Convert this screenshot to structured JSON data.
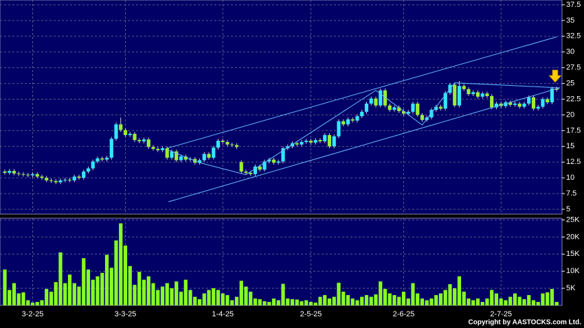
{
  "chart_data": {
    "type": "candlestick",
    "categories": [
      null,
      null,
      null,
      null,
      null,
      null,
      "3-2-25",
      null,
      null,
      null,
      null,
      null,
      null,
      null,
      null,
      null,
      null,
      null,
      null,
      null,
      null,
      null,
      null,
      null,
      null,
      null,
      "3-3-25",
      null,
      null,
      null,
      null,
      null,
      null,
      null,
      null,
      null,
      null,
      null,
      null,
      null,
      null,
      null,
      null,
      null,
      null,
      null,
      null,
      "1-4-25",
      null,
      null,
      null,
      null,
      null,
      null,
      null,
      null,
      null,
      null,
      null,
      null,
      null,
      null,
      null,
      null,
      null,
      null,
      "2-5-25",
      null,
      null,
      null,
      null,
      null,
      null,
      null,
      null,
      null,
      null,
      null,
      null,
      null,
      null,
      null,
      null,
      null,
      null,
      null,
      "2-6-25",
      null,
      null,
      null,
      null,
      null,
      null,
      null,
      null,
      null,
      null,
      null,
      null,
      null,
      null,
      null,
      null,
      null,
      null,
      null,
      null,
      "2-7-25",
      null,
      null,
      null,
      null,
      null,
      null,
      null,
      null,
      null,
      null,
      null,
      null
    ],
    "open": [
      11.0,
      10.8,
      11.1,
      10.7,
      10.6,
      10.5,
      10.4,
      10.6,
      10.2,
      10.0,
      9.6,
      9.5,
      9.3,
      9.6,
      9.7,
      9.6,
      10.2,
      10.0,
      11.0,
      11.5,
      12.6,
      13.1,
      12.9,
      13.2,
      16.2,
      18.5,
      17.6,
      16.8,
      17.0,
      16.0,
      15.8,
      16.1,
      14.9,
      14.6,
      14.4,
      14.7,
      13.2,
      14.2,
      12.8,
      13.4,
      12.9,
      13.0,
      12.4,
      12.8,
      13.8,
      13.2,
      14.8,
      15.9,
      15.7,
      15.3,
      15.2,
      12.5,
      11.0,
      10.8,
      10.6,
      11.8,
      11.3,
      12.6,
      12.9,
      12.4,
      12.6,
      14.7,
      15.0,
      15.5,
      15.3,
      15.7,
      15.9,
      15.6,
      16.0,
      15.8,
      16.8,
      15.0,
      16.6,
      19.0,
      18.5,
      19.3,
      19.1,
      19.8,
      20.5,
      21.8,
      22.6,
      21.5,
      23.9,
      21.5,
      20.8,
      21.2,
      20.6,
      20.2,
      20.5,
      21.8,
      20.0,
      19.2,
      19.6,
      20.8,
      21.3,
      21.0,
      23.5,
      24.8,
      21.5,
      24.6,
      24.1,
      23.3,
      23.6,
      22.9,
      23.4,
      23.0,
      21.2,
      21.8,
      21.4,
      22.0,
      21.6,
      21.8,
      21.3,
      21.8,
      22.8,
      21.0,
      21.3,
      22.5,
      22.0,
      24.2
    ],
    "high": [
      11.3,
      11.4,
      11.4,
      11.0,
      10.9,
      10.8,
      10.9,
      10.9,
      10.5,
      10.3,
      9.9,
      9.8,
      9.9,
      10.0,
      10.0,
      10.5,
      10.5,
      11.3,
      11.8,
      12.9,
      13.4,
      13.4,
      13.5,
      16.5,
      18.8,
      19.6,
      17.9,
      17.3,
      17.3,
      16.3,
      16.4,
      16.4,
      15.2,
      14.9,
      15.0,
      15.0,
      14.5,
      14.5,
      13.7,
      13.7,
      13.3,
      13.3,
      13.1,
      14.1,
      14.1,
      15.1,
      16.2,
      16.2,
      16.0,
      15.6,
      15.5,
      12.8,
      11.3,
      11.1,
      12.1,
      12.1,
      12.9,
      13.2,
      13.2,
      12.9,
      15.0,
      15.3,
      15.8,
      15.8,
      16.0,
      16.2,
      16.2,
      16.3,
      16.3,
      17.1,
      17.1,
      16.9,
      19.3,
      19.3,
      19.6,
      19.6,
      20.1,
      20.8,
      22.1,
      22.9,
      22.9,
      24.2,
      24.2,
      21.8,
      21.5,
      21.5,
      20.9,
      20.8,
      22.1,
      22.1,
      20.3,
      19.9,
      21.1,
      21.6,
      21.6,
      23.8,
      25.1,
      25.1,
      25.4,
      24.9,
      24.4,
      23.9,
      23.9,
      23.7,
      23.7,
      23.3,
      22.1,
      22.1,
      22.3,
      22.3,
      22.1,
      22.1,
      22.1,
      23.1,
      23.1,
      21.6,
      22.8,
      22.8,
      24.5,
      24.5
    ],
    "low": [
      10.5,
      10.5,
      10.4,
      10.3,
      10.2,
      10.1,
      10.1,
      9.9,
      9.7,
      9.3,
      9.2,
      9.0,
      9.0,
      9.3,
      9.3,
      9.3,
      9.7,
      9.7,
      10.7,
      11.2,
      12.3,
      12.6,
      12.6,
      12.9,
      15.9,
      17.3,
      16.5,
      16.5,
      15.7,
      15.5,
      15.5,
      14.6,
      14.3,
      14.1,
      14.1,
      12.9,
      12.9,
      12.5,
      12.5,
      12.6,
      12.6,
      12.1,
      12.1,
      12.5,
      12.9,
      12.9,
      14.5,
      15.4,
      15.0,
      14.9,
      14.6,
      10.7,
      10.5,
      10.3,
      10.3,
      11.0,
      11.0,
      12.3,
      12.1,
      12.1,
      12.3,
      14.4,
      14.7,
      15.0,
      15.0,
      15.4,
      15.3,
      15.3,
      15.5,
      15.5,
      14.7,
      14.7,
      16.3,
      18.2,
      18.2,
      18.8,
      18.8,
      19.5,
      20.2,
      21.5,
      21.2,
      21.2,
      21.2,
      20.5,
      20.5,
      20.3,
      19.9,
      19.9,
      20.2,
      19.7,
      18.9,
      18.9,
      19.3,
      20.5,
      20.7,
      20.7,
      23.2,
      21.2,
      21.2,
      23.8,
      23.0,
      23.0,
      22.6,
      22.6,
      22.7,
      20.9,
      20.9,
      21.1,
      21.1,
      21.3,
      21.3,
      21.0,
      21.0,
      21.5,
      20.7,
      20.7,
      21.0,
      21.7,
      21.7,
      23.7
    ],
    "close": [
      10.8,
      11.1,
      10.7,
      10.6,
      10.5,
      10.4,
      10.6,
      10.2,
      10.0,
      9.6,
      9.5,
      9.3,
      9.6,
      9.7,
      9.6,
      10.2,
      10.0,
      11.0,
      11.5,
      12.6,
      13.1,
      12.9,
      13.2,
      16.2,
      18.5,
      17.6,
      16.8,
      17.0,
      16.0,
      15.8,
      16.1,
      14.9,
      14.6,
      14.4,
      14.7,
      13.2,
      14.2,
      12.8,
      13.4,
      12.9,
      13.0,
      12.4,
      12.8,
      13.8,
      13.2,
      14.8,
      15.9,
      15.7,
      15.3,
      15.2,
      14.9,
      11.0,
      10.8,
      10.6,
      11.8,
      11.3,
      12.6,
      12.9,
      12.4,
      12.6,
      14.7,
      15.0,
      15.5,
      15.3,
      15.7,
      15.9,
      15.6,
      16.0,
      15.8,
      16.8,
      15.0,
      16.6,
      19.0,
      18.5,
      19.3,
      19.1,
      19.8,
      20.5,
      21.8,
      22.6,
      21.5,
      23.9,
      21.5,
      20.8,
      21.2,
      20.6,
      20.2,
      20.5,
      21.8,
      20.0,
      19.2,
      19.6,
      20.8,
      21.3,
      21.0,
      23.5,
      24.8,
      21.5,
      24.6,
      24.1,
      23.3,
      23.6,
      22.9,
      23.4,
      23.0,
      21.2,
      21.8,
      21.4,
      22.0,
      21.6,
      21.8,
      21.3,
      21.8,
      22.8,
      21.0,
      21.3,
      22.5,
      22.0,
      24.2,
      24.0
    ],
    "volume": [
      10500,
      4500,
      6500,
      3500,
      3800,
      1500,
      800,
      1000,
      1500,
      4800,
      4000,
      6800,
      15500,
      6500,
      9000,
      6500,
      5500,
      13800,
      10500,
      7500,
      8500,
      9500,
      14800,
      11000,
      19000,
      24000,
      17500,
      11500,
      6000,
      9800,
      7500,
      8500,
      6500,
      4500,
      5500,
      6500,
      5000,
      7000,
      4000,
      7500,
      4500,
      2500,
      1800,
      3500,
      4500,
      5000,
      4500,
      3500,
      3000,
      1500,
      2500,
      7200,
      5500,
      4000,
      2000,
      1800,
      1200,
      1000,
      2000,
      1500,
      6300,
      2000,
      1800,
      1700,
      1200,
      1500,
      1000,
      800,
      2500,
      3000,
      2000,
      2500,
      6600,
      4000,
      3000,
      2000,
      1500,
      2500,
      3000,
      2500,
      3200,
      7000,
      4800,
      3500,
      3000,
      2500,
      4000,
      2000,
      6500,
      3500,
      2000,
      1500,
      2000,
      3000,
      3500,
      4500,
      6200,
      5000,
      8500,
      4000,
      2000,
      1500,
      2000,
      1000,
      2000,
      4500,
      3500,
      2000,
      1500,
      2500,
      3500,
      2500,
      1800,
      3000,
      1500,
      1000,
      3500,
      3800,
      4800,
      1000
    ],
    "up_color": "#33e6ff",
    "down_color": "#99ee33",
    "volume_color": "#88ff22",
    "trendline_color": "#66bbff",
    "ylim": [
      4.24,
      38.26
    ],
    "yticks": [
      5,
      7.5,
      10,
      12.5,
      15,
      17.5,
      20,
      22.5,
      25,
      27.5,
      30,
      32.5,
      35,
      37.5
    ],
    "volume_ylim": [
      0,
      25500
    ],
    "volume_yticks": [
      {
        "value": 5000,
        "label": "5K"
      },
      {
        "value": 10000,
        "label": "10K"
      },
      {
        "value": 15000,
        "label": "15K"
      },
      {
        "value": 20000,
        "label": "20K"
      },
      {
        "value": 25000,
        "label": "25K"
      }
    ],
    "grid": true,
    "trendlines": [
      {
        "x": [
          35,
          119
        ],
        "y": [
          14.7,
          32.4
        ]
      },
      {
        "x": [
          35.3,
          119.7
        ],
        "y": [
          6.2,
          24.3
        ]
      },
      {
        "x": [
          35,
          42,
          52,
          80,
          90,
          97,
          119.7
        ],
        "y": [
          14.5,
          12.4,
          10.5,
          23.9,
          18.4,
          25.1,
          24.3
        ]
      }
    ],
    "copyright": "Copyright by AASTOCKS.com Ltd."
  }
}
